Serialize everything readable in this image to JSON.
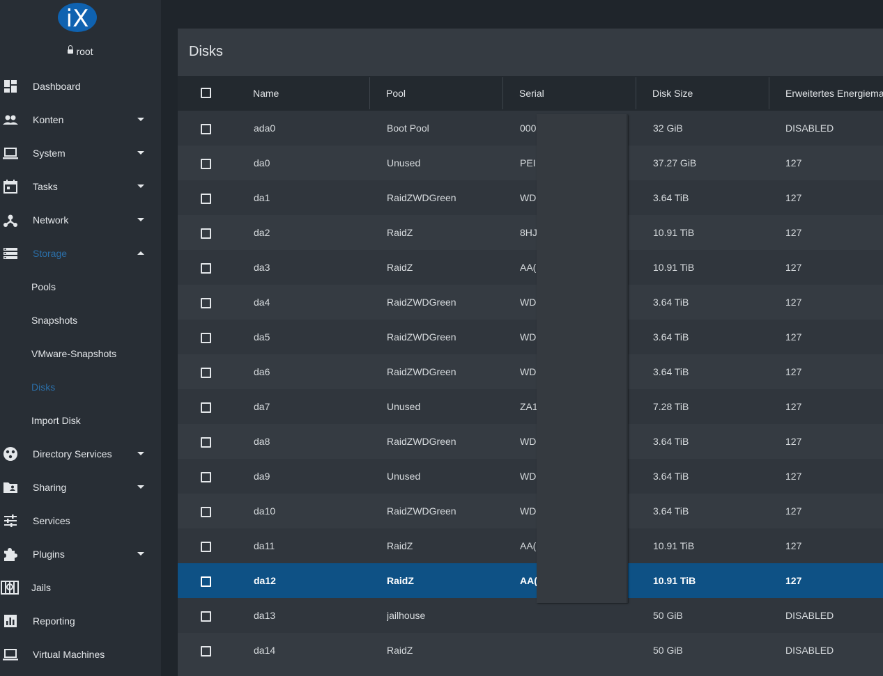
{
  "brand": {
    "logo_text": "iX",
    "colors": {
      "logo": "#0f62b0",
      "accent": "#0e5185",
      "active_nav": "#2b6ea7"
    }
  },
  "user": {
    "name": "root",
    "icon": "lock-icon"
  },
  "nav": {
    "items": [
      {
        "label": "Dashboard",
        "icon": "dashboard-icon"
      },
      {
        "label": "Konten",
        "icon": "people-icon"
      },
      {
        "label": "System",
        "icon": "laptop-icon"
      },
      {
        "label": "Tasks",
        "icon": "calendar-icon"
      },
      {
        "label": "Network",
        "icon": "network-icon"
      },
      {
        "label": "Storage",
        "icon": "storage-icon"
      },
      {
        "label": "Pools"
      },
      {
        "label": "Snapshots"
      },
      {
        "label": "VMware-Snapshots"
      },
      {
        "label": "Disks"
      },
      {
        "label": "Import Disk"
      },
      {
        "label": "Directory Services",
        "icon": "directory-icon"
      },
      {
        "label": "Sharing",
        "icon": "folder-shared-icon"
      },
      {
        "label": "Services",
        "icon": "tune-icon"
      },
      {
        "label": "Plugins",
        "icon": "puzzle-icon"
      },
      {
        "label": "Jails",
        "icon": "jail-icon"
      },
      {
        "label": "Reporting",
        "icon": "chart-icon"
      },
      {
        "label": "Virtual Machines",
        "icon": "computer-icon"
      }
    ]
  },
  "page": {
    "title": "Disks"
  },
  "table": {
    "columns": [
      "Name",
      "Pool",
      "Serial",
      "Disk Size",
      "Erweitertes Energiema"
    ],
    "rows": [
      {
        "name": "ada0",
        "pool": "Boot Pool",
        "serial": "000",
        "size": "32 GiB",
        "power": "DISABLED"
      },
      {
        "name": "da0",
        "pool": "Unused",
        "serial": "PEI",
        "size": "37.27 GiB",
        "power": "127"
      },
      {
        "name": "da1",
        "pool": "RaidZWDGreen",
        "serial": "WD",
        "size": "3.64 TiB",
        "power": "127"
      },
      {
        "name": "da2",
        "pool": "RaidZ",
        "serial": "8HJ",
        "size": "10.91 TiB",
        "power": "127"
      },
      {
        "name": "da3",
        "pool": "RaidZ",
        "serial": "AA(",
        "size": "10.91 TiB",
        "power": "127"
      },
      {
        "name": "da4",
        "pool": "RaidZWDGreen",
        "serial": "WD",
        "size": "3.64 TiB",
        "power": "127"
      },
      {
        "name": "da5",
        "pool": "RaidZWDGreen",
        "serial": "WD",
        "size": "3.64 TiB",
        "power": "127"
      },
      {
        "name": "da6",
        "pool": "RaidZWDGreen",
        "serial": "WD",
        "size": "3.64 TiB",
        "power": "127"
      },
      {
        "name": "da7",
        "pool": "Unused",
        "serial": "ZA1",
        "size": "7.28 TiB",
        "power": "127"
      },
      {
        "name": "da8",
        "pool": "RaidZWDGreen",
        "serial": "WD",
        "size": "3.64 TiB",
        "power": "127"
      },
      {
        "name": "da9",
        "pool": "Unused",
        "serial": "WD",
        "size": "3.64 TiB",
        "power": "127"
      },
      {
        "name": "da10",
        "pool": "RaidZWDGreen",
        "serial": "WD",
        "size": "3.64 TiB",
        "power": "127"
      },
      {
        "name": "da11",
        "pool": "RaidZ",
        "serial": "AA(",
        "size": "10.91 TiB",
        "power": "127"
      },
      {
        "name": "da12",
        "pool": "RaidZ",
        "serial": "AA(",
        "size": "10.91 TiB",
        "power": "127"
      },
      {
        "name": "da13",
        "pool": "jailhouse",
        "serial": "",
        "size": "50 GiB",
        "power": "DISABLED"
      },
      {
        "name": "da14",
        "pool": "RaidZ",
        "serial": "",
        "size": "50 GiB",
        "power": "DISABLED"
      }
    ]
  }
}
